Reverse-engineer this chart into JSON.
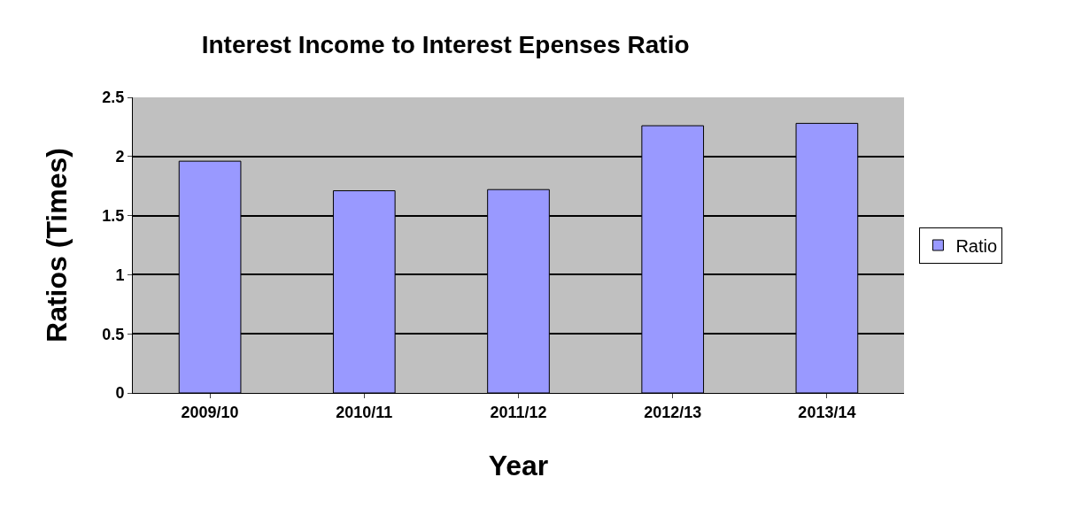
{
  "chart_data": {
    "type": "bar",
    "title": "Interest Income to Interest Epenses Ratio",
    "xlabel": "Year",
    "ylabel": "Ratios (Times)",
    "categories": [
      "2009/10",
      "2010/11",
      "2011/12",
      "2012/13",
      "2013/14"
    ],
    "series": [
      {
        "name": "Ratio",
        "color": "#9999ff",
        "values": [
          1.96,
          1.71,
          1.72,
          2.26,
          2.28
        ]
      }
    ],
    "ylim": [
      0,
      2.5
    ],
    "yticks": [
      0,
      0.5,
      1,
      1.5,
      2,
      2.5
    ],
    "grid": "y",
    "legend": "right"
  }
}
